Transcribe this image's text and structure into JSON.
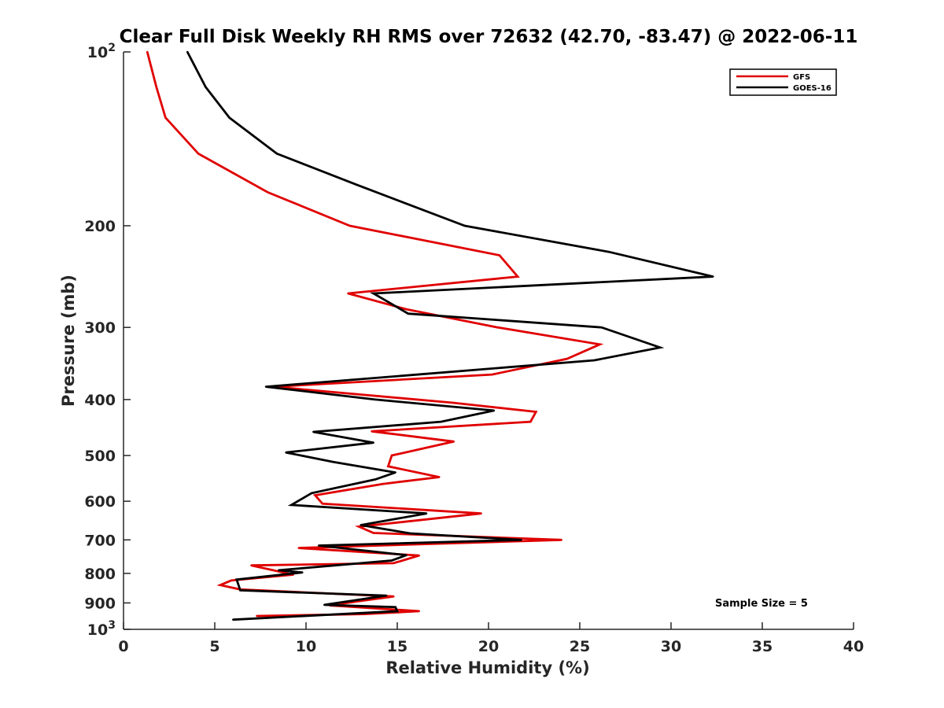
{
  "chart_data": {
    "type": "line",
    "title": "Clear Full Disk Weekly RH RMS over 72632 (42.70, -83.47) @ 2022-06-11",
    "xlabel": "Relative Humidity (%)",
    "ylabel": "Pressure (mb)",
    "xlim": [
      0,
      40
    ],
    "ylim": [
      100,
      1000
    ],
    "y_scale": "log",
    "y_reversed": true,
    "x_ticks": [
      "0",
      "5",
      "10",
      "15",
      "20",
      "25",
      "30",
      "35",
      "40"
    ],
    "y_ticks": [
      {
        "value": 100,
        "base": "10",
        "exp": "2"
      },
      {
        "value": 200,
        "label": "200"
      },
      {
        "value": 300,
        "label": "300"
      },
      {
        "value": 400,
        "label": "400"
      },
      {
        "value": 500,
        "label": "500"
      },
      {
        "value": 600,
        "label": "600"
      },
      {
        "value": 700,
        "label": "700"
      },
      {
        "value": 800,
        "label": "800"
      },
      {
        "value": 900,
        "label": "900"
      },
      {
        "value": 1000,
        "base": "10",
        "exp": "3"
      }
    ],
    "grid": false,
    "legend_position": "top-right",
    "annotation": "Sample Size = 5",
    "series": [
      {
        "name": "GFS",
        "color": "#e00000",
        "points": [
          {
            "x": 1.3,
            "y": 100
          },
          {
            "x": 1.8,
            "y": 115
          },
          {
            "x": 2.3,
            "y": 130
          },
          {
            "x": 4.1,
            "y": 150
          },
          {
            "x": 7.9,
            "y": 175
          },
          {
            "x": 12.4,
            "y": 200
          },
          {
            "x": 20.6,
            "y": 225
          },
          {
            "x": 21.6,
            "y": 245
          },
          {
            "x": 12.3,
            "y": 262
          },
          {
            "x": 15.5,
            "y": 279
          },
          {
            "x": 20.5,
            "y": 300
          },
          {
            "x": 26.1,
            "y": 321
          },
          {
            "x": 24.3,
            "y": 340
          },
          {
            "x": 20.2,
            "y": 362
          },
          {
            "x": 8.2,
            "y": 380
          },
          {
            "x": 18.0,
            "y": 405
          },
          {
            "x": 22.6,
            "y": 420
          },
          {
            "x": 22.3,
            "y": 437
          },
          {
            "x": 13.6,
            "y": 454
          },
          {
            "x": 18.1,
            "y": 473
          },
          {
            "x": 14.7,
            "y": 500
          },
          {
            "x": 14.5,
            "y": 522
          },
          {
            "x": 17.3,
            "y": 545
          },
          {
            "x": 14.2,
            "y": 560
          },
          {
            "x": 10.5,
            "y": 586
          },
          {
            "x": 10.9,
            "y": 606
          },
          {
            "x": 19.6,
            "y": 630
          },
          {
            "x": 12.9,
            "y": 664
          },
          {
            "x": 13.7,
            "y": 681
          },
          {
            "x": 24.0,
            "y": 700
          },
          {
            "x": 9.6,
            "y": 723
          },
          {
            "x": 16.2,
            "y": 745
          },
          {
            "x": 14.8,
            "y": 768
          },
          {
            "x": 7.0,
            "y": 775
          },
          {
            "x": 9.3,
            "y": 804
          },
          {
            "x": 5.9,
            "y": 823
          },
          {
            "x": 5.3,
            "y": 838
          },
          {
            "x": 6.4,
            "y": 853
          },
          {
            "x": 14.8,
            "y": 877
          },
          {
            "x": 13.0,
            "y": 893
          },
          {
            "x": 11.3,
            "y": 909
          },
          {
            "x": 16.2,
            "y": 930
          },
          {
            "x": 13.2,
            "y": 941
          },
          {
            "x": 7.3,
            "y": 948
          }
        ]
      },
      {
        "name": "GOES-16",
        "color": "#000000",
        "points": [
          {
            "x": 3.5,
            "y": 100
          },
          {
            "x": 4.5,
            "y": 115
          },
          {
            "x": 5.8,
            "y": 130
          },
          {
            "x": 8.4,
            "y": 150
          },
          {
            "x": 12.8,
            "y": 170
          },
          {
            "x": 18.7,
            "y": 200
          },
          {
            "x": 26.6,
            "y": 222
          },
          {
            "x": 32.3,
            "y": 245
          },
          {
            "x": 13.7,
            "y": 262
          },
          {
            "x": 15.6,
            "y": 284
          },
          {
            "x": 26.2,
            "y": 300
          },
          {
            "x": 29.4,
            "y": 325
          },
          {
            "x": 25.8,
            "y": 342
          },
          {
            "x": 15.2,
            "y": 364
          },
          {
            "x": 7.8,
            "y": 380
          },
          {
            "x": 13.8,
            "y": 400
          },
          {
            "x": 20.3,
            "y": 418
          },
          {
            "x": 17.4,
            "y": 437
          },
          {
            "x": 10.4,
            "y": 455
          },
          {
            "x": 13.7,
            "y": 475
          },
          {
            "x": 8.9,
            "y": 494
          },
          {
            "x": 11.5,
            "y": 513
          },
          {
            "x": 14.9,
            "y": 535
          },
          {
            "x": 13.8,
            "y": 550
          },
          {
            "x": 10.3,
            "y": 581
          },
          {
            "x": 9.2,
            "y": 609
          },
          {
            "x": 16.6,
            "y": 630
          },
          {
            "x": 13.0,
            "y": 660
          },
          {
            "x": 15.7,
            "y": 682
          },
          {
            "x": 21.8,
            "y": 700
          },
          {
            "x": 10.7,
            "y": 716
          },
          {
            "x": 15.5,
            "y": 744
          },
          {
            "x": 14.7,
            "y": 760
          },
          {
            "x": 8.5,
            "y": 790
          },
          {
            "x": 9.8,
            "y": 797
          },
          {
            "x": 6.2,
            "y": 820
          },
          {
            "x": 6.4,
            "y": 856
          },
          {
            "x": 14.4,
            "y": 874
          },
          {
            "x": 11.0,
            "y": 907
          },
          {
            "x": 14.9,
            "y": 915
          },
          {
            "x": 15.0,
            "y": 930
          },
          {
            "x": 6.0,
            "y": 962
          }
        ]
      }
    ]
  }
}
